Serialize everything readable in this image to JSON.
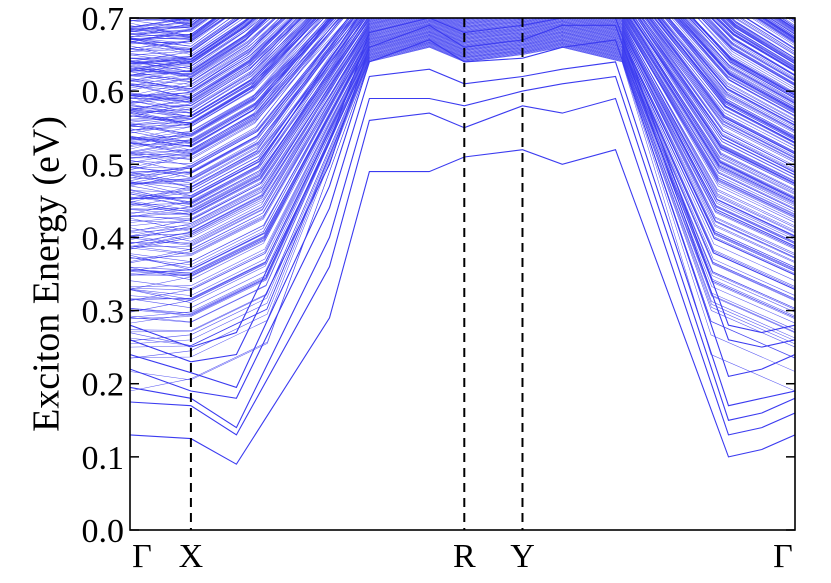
{
  "chart_data": {
    "type": "line",
    "title": "",
    "ylabel": "Exciton Energy (eV)",
    "xlabel": "",
    "ylim": [
      0.0,
      0.7
    ],
    "yticks": [
      0.0,
      0.1,
      0.2,
      0.3,
      0.4,
      0.5,
      0.6,
      0.7
    ],
    "ytick_labels": [
      "0.0",
      "0.1",
      "0.2",
      "0.3",
      "0.4",
      "0.5",
      "0.6",
      "0.7"
    ],
    "xlim": [
      0,
      1
    ],
    "k_points": [
      {
        "label": "Γ",
        "x": 0.0
      },
      {
        "label": "X",
        "x": 0.0916
      },
      {
        "label": "R",
        "x": 0.5027
      },
      {
        "label": "Y",
        "x": 0.5902
      },
      {
        "label": "Γ",
        "x": 1.0
      }
    ],
    "vertical_dashed_lines_at": [
      0.0916,
      0.5902,
      0.5027
    ],
    "grid": false,
    "series_color": "#3b3bf0",
    "background_band_count": 380,
    "series": [
      {
        "x": [
          0,
          0.0916,
          0.16,
          0.3,
          0.36,
          0.45,
          0.5027,
          0.5902,
          0.65,
          0.73,
          0.9,
          0.95,
          1.0
        ],
        "values": [
          0.13,
          0.125,
          0.09,
          0.29,
          0.49,
          0.49,
          0.51,
          0.52,
          0.5,
          0.52,
          0.1,
          0.11,
          0.13
        ]
      },
      {
        "x": [
          0,
          0.0916,
          0.16,
          0.3,
          0.36,
          0.45,
          0.5027,
          0.5902,
          0.65,
          0.73,
          0.9,
          0.95,
          1.0
        ],
        "values": [
          0.175,
          0.17,
          0.13,
          0.36,
          0.56,
          0.57,
          0.55,
          0.58,
          0.57,
          0.59,
          0.13,
          0.14,
          0.16
        ]
      },
      {
        "x": [
          0,
          0.0916,
          0.16,
          0.3,
          0.36,
          0.45,
          0.5027,
          0.5902,
          0.65,
          0.73,
          0.9,
          0.95,
          1.0
        ],
        "values": [
          0.195,
          0.18,
          0.14,
          0.4,
          0.59,
          0.59,
          0.58,
          0.6,
          0.61,
          0.62,
          0.15,
          0.16,
          0.18
        ]
      },
      {
        "x": [
          0,
          0.0916,
          0.16,
          0.3,
          0.36,
          0.45,
          0.5027,
          0.5902,
          0.65,
          0.73,
          0.9,
          0.95,
          1.0
        ],
        "values": [
          0.22,
          0.19,
          0.18,
          0.44,
          0.62,
          0.63,
          0.61,
          0.62,
          0.63,
          0.64,
          0.17,
          0.18,
          0.19
        ]
      },
      {
        "x": [
          0,
          0.0916,
          0.16,
          0.3,
          0.36,
          0.45,
          0.5027,
          0.5902,
          0.65,
          0.73,
          0.9,
          0.95,
          1.0
        ],
        "values": [
          0.24,
          0.215,
          0.195,
          0.47,
          0.64,
          0.67,
          0.64,
          0.645,
          0.66,
          0.67,
          0.21,
          0.22,
          0.24
        ]
      },
      {
        "x": [
          0,
          0.0916,
          0.16,
          0.3,
          0.36,
          0.45,
          0.5027,
          0.5902,
          0.65,
          0.73,
          0.9,
          0.95,
          1.0
        ],
        "values": [
          0.26,
          0.23,
          0.24,
          0.5,
          0.66,
          0.69,
          0.66,
          0.67,
          0.69,
          0.69,
          0.26,
          0.25,
          0.26
        ]
      },
      {
        "x": [
          0,
          0.0916,
          0.16,
          0.3,
          0.36,
          0.45,
          0.5027,
          0.5902,
          0.65,
          0.73,
          0.9,
          0.95,
          1.0
        ],
        "values": [
          0.28,
          0.25,
          0.27,
          0.53,
          0.68,
          0.7,
          0.68,
          0.69,
          0.7,
          0.7,
          0.28,
          0.27,
          0.28
        ]
      }
    ]
  }
}
